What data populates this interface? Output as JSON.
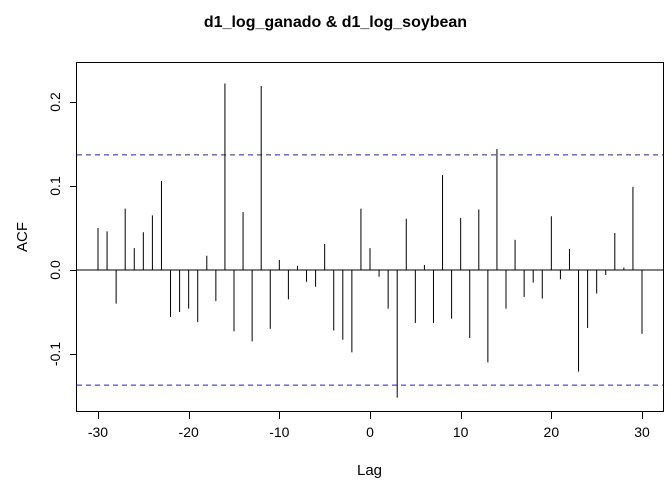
{
  "title": "d1_log_ganado & d1_log_soybean",
  "chart_data": {
    "type": "bar",
    "subtype": "ccf-lollipop",
    "title": "d1_log_ganado & d1_log_soybean",
    "xlabel": "Lag",
    "ylabel": "ACF",
    "xlim": [
      -32.4,
      32.4
    ],
    "ylim": [
      -0.168,
      0.246
    ],
    "x_ticks": [
      -30,
      -20,
      -10,
      0,
      10,
      20,
      30
    ],
    "y_ticks": [
      -0.1,
      0.0,
      0.1,
      0.2
    ],
    "y_tick_labels": [
      "-0.1",
      "0.0",
      "0.1",
      "0.2"
    ],
    "x_tick_labels": [
      "-30",
      "-20",
      "-10",
      "0",
      "10",
      "20",
      "30"
    ],
    "confidence_bounds": [
      0.137,
      -0.137
    ],
    "grid": false,
    "legend": "none",
    "colors": {
      "bar": "#000000",
      "confidence_line": "#2222bb",
      "axis": "#000000",
      "background": "#ffffff"
    },
    "lags": [
      -30,
      -29,
      -28,
      -27,
      -26,
      -25,
      -24,
      -23,
      -22,
      -21,
      -20,
      -19,
      -18,
      -17,
      -16,
      -15,
      -14,
      -13,
      -12,
      -11,
      -10,
      -9,
      -8,
      -7,
      -6,
      -5,
      -4,
      -3,
      -2,
      -1,
      0,
      1,
      2,
      3,
      4,
      5,
      6,
      7,
      8,
      9,
      10,
      11,
      12,
      13,
      14,
      15,
      16,
      17,
      18,
      19,
      20,
      21,
      22,
      23,
      24,
      25,
      26,
      27,
      28,
      29,
      30
    ],
    "values": [
      0.05,
      0.046,
      -0.04,
      0.073,
      0.026,
      0.045,
      0.065,
      0.106,
      -0.056,
      -0.05,
      -0.046,
      -0.062,
      0.017,
      -0.037,
      0.222,
      -0.073,
      0.069,
      -0.085,
      0.219,
      -0.07,
      0.012,
      -0.035,
      0.005,
      -0.014,
      -0.02,
      0.031,
      -0.072,
      -0.083,
      -0.098,
      0.073,
      0.026,
      -0.008,
      -0.046,
      -0.152,
      0.061,
      -0.063,
      0.006,
      -0.063,
      0.113,
      -0.058,
      0.062,
      -0.081,
      0.072,
      -0.11,
      0.144,
      -0.046,
      0.036,
      -0.032,
      -0.015,
      -0.034,
      0.064,
      -0.011,
      0.025,
      -0.121,
      -0.069,
      -0.028,
      -0.006,
      0.044,
      0.003,
      0.099,
      -0.076
    ]
  }
}
